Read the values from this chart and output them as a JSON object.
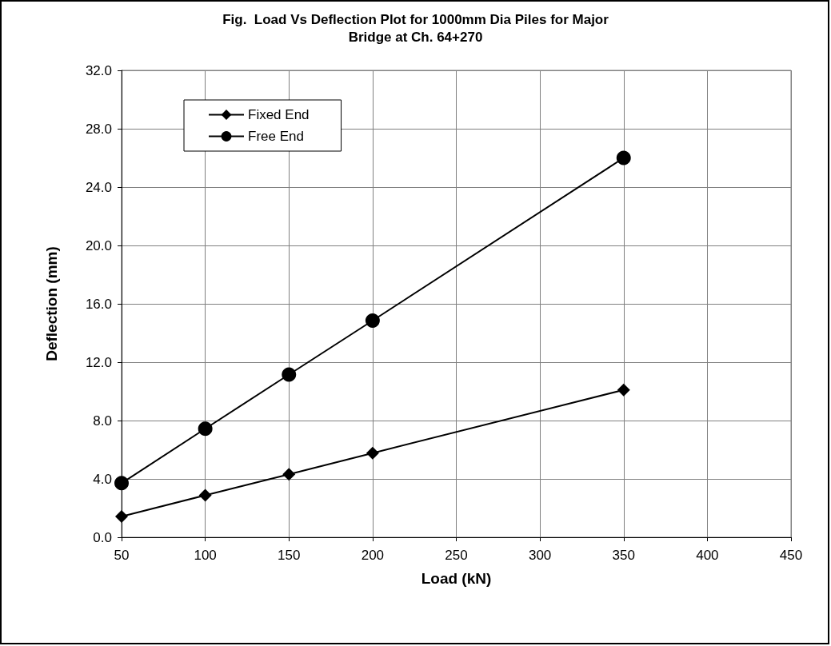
{
  "chart_data": {
    "type": "line",
    "title": "Fig.  Load Vs Deflection Plot for 1000mm Dia Piles for Major\nBridge at Ch. 64+270",
    "xlabel": "Load (kN)",
    "ylabel": "Deflection (mm)",
    "x": [
      50,
      100,
      150,
      200,
      350
    ],
    "series": [
      {
        "name": "Fixed End",
        "color": "#000000",
        "marker": "diamond",
        "values": [
          1.42,
          2.88,
          4.31,
          5.77,
          10.1
        ]
      },
      {
        "name": "Free End",
        "color": "#000000",
        "marker": "circle",
        "values": [
          3.71,
          7.44,
          11.15,
          14.85,
          26.0
        ]
      }
    ],
    "xlim": [
      50,
      450
    ],
    "xticks": [
      50,
      100,
      150,
      200,
      250,
      300,
      350,
      400,
      450
    ],
    "ylim": [
      0,
      32
    ],
    "yticks": [
      {
        "value": 0,
        "label": "0.0"
      },
      {
        "value": 4,
        "label": "4.0"
      },
      {
        "value": 8,
        "label": "8.0"
      },
      {
        "value": 12,
        "label": "12.0"
      },
      {
        "value": 16,
        "label": "16.0"
      },
      {
        "value": 20,
        "label": "20.0"
      },
      {
        "value": 24,
        "label": "24.0"
      },
      {
        "value": 28,
        "label": "28.0"
      },
      {
        "value": 32,
        "label": "32.0"
      }
    ],
    "grid": true,
    "legend": "top left",
    "line_style": "solid"
  }
}
